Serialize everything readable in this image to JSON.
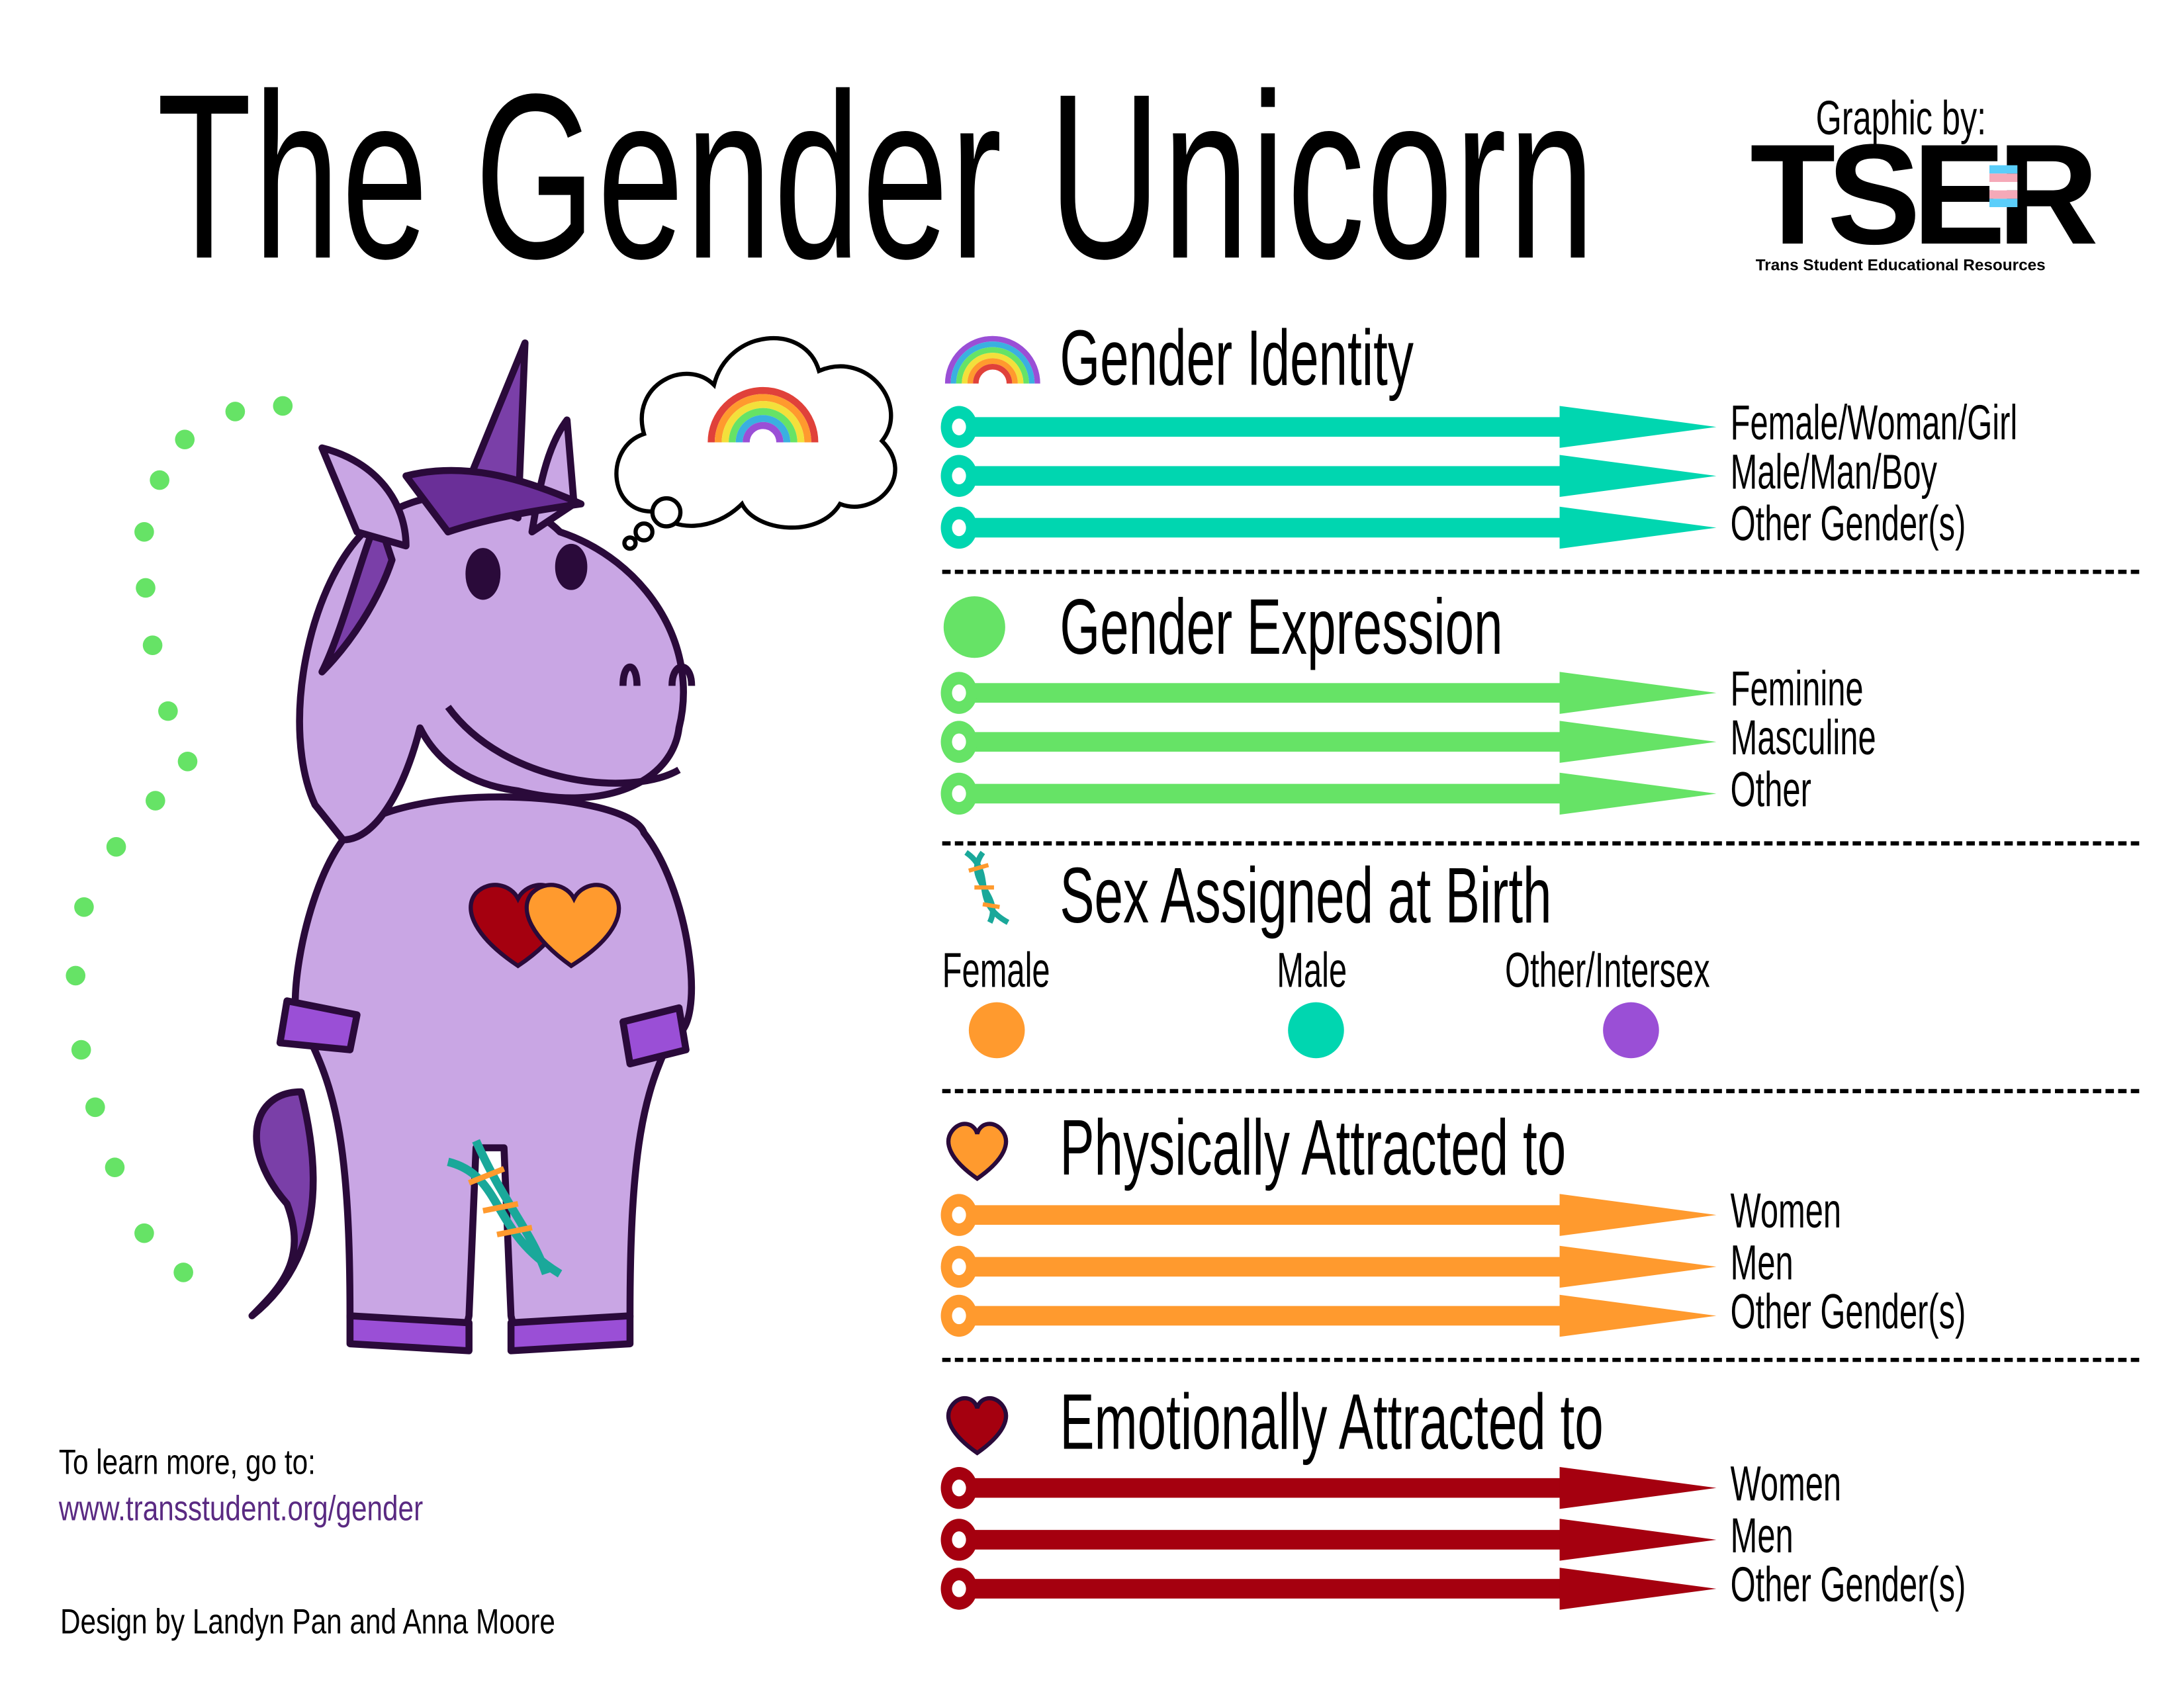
{
  "title": "The Gender Unicorn",
  "credit": {
    "graphic_by": "Graphic by:",
    "logo": "TSER",
    "logo_subtitle": "Trans Student Educational Resources"
  },
  "sections": [
    {
      "heading": "Gender Identity",
      "icon": "rainbow-icon",
      "color": "#00d6b0",
      "options": [
        "Female/Woman/Girl",
        "Male/Man/Boy",
        "Other Gender(s)"
      ]
    },
    {
      "heading": "Gender Expression",
      "icon": "green-circle-icon",
      "color": "#66e366",
      "options": [
        "Feminine",
        "Masculine",
        "Other"
      ]
    },
    {
      "heading": "Sex Assigned at Birth",
      "icon": "dna-icon",
      "choices": [
        {
          "label": "Female",
          "color": "#ff9a2e"
        },
        {
          "label": "Male",
          "color": "#00d6b0"
        },
        {
          "label": "Other/Intersex",
          "color": "#9a4fd6"
        }
      ]
    },
    {
      "heading": "Physically Attracted to",
      "icon": "orange-heart-icon",
      "color": "#ff9a2e",
      "options": [
        "Women",
        "Men",
        "Other Gender(s)"
      ]
    },
    {
      "heading": "Emotionally Attracted to",
      "icon": "red-heart-icon",
      "color": "#a5000f",
      "options": [
        "Women",
        "Men",
        "Other Gender(s)"
      ]
    }
  ],
  "footer": {
    "learn_more": "To learn more, go to:",
    "url": "www.transstudent.org/gender",
    "design_credit": "Design by Landyn Pan and Anna Moore"
  }
}
